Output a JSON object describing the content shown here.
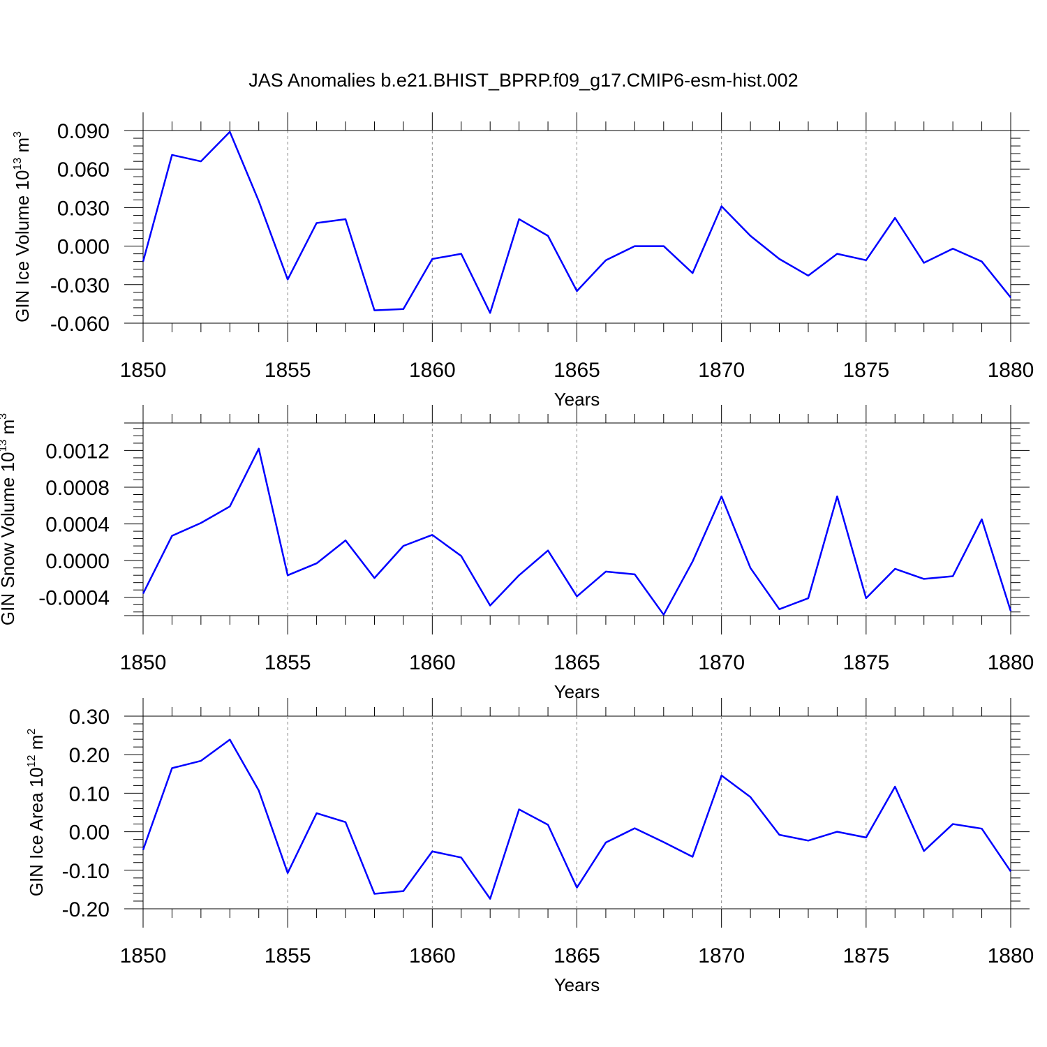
{
  "title": "JAS Anomalies b.e21.BHIST_BPRP.f09_g17.CMIP6-esm-hist.002",
  "colors": {
    "line": "#0000ff",
    "axis": "#000000",
    "grid": "#888888"
  },
  "chart_data": [
    {
      "type": "line",
      "ylabel": {
        "base": "GIN Ice Volume 10",
        "exp": "13",
        "unit": " m",
        "unitExp": "3"
      },
      "xlabel": "Years",
      "xlim": [
        1850,
        1880
      ],
      "ylim": [
        -0.06,
        0.09
      ],
      "xticks": [
        1850,
        1855,
        1860,
        1865,
        1870,
        1875,
        1880
      ],
      "yticks": [
        -0.06,
        -0.03,
        0.0,
        0.03,
        0.06,
        0.09
      ],
      "yticklabels": [
        "-0.060",
        "-0.030",
        "0.000",
        "0.030",
        "0.060",
        "0.090"
      ],
      "x": [
        1850,
        1851,
        1852,
        1853,
        1854,
        1855,
        1856,
        1857,
        1858,
        1859,
        1860,
        1861,
        1862,
        1863,
        1864,
        1865,
        1866,
        1867,
        1868,
        1869,
        1870,
        1871,
        1872,
        1873,
        1874,
        1875,
        1876,
        1877,
        1878,
        1879,
        1880
      ],
      "values": [
        -0.012,
        0.071,
        0.066,
        0.089,
        0.035,
        -0.026,
        0.018,
        0.021,
        -0.05,
        -0.049,
        -0.01,
        -0.006,
        -0.052,
        0.021,
        0.008,
        -0.035,
        -0.011,
        0.0,
        0.0,
        -0.021,
        0.031,
        0.008,
        -0.01,
        -0.023,
        -0.006,
        -0.011,
        0.022,
        -0.013,
        -0.002,
        -0.012,
        -0.04
      ]
    },
    {
      "type": "line",
      "ylabel": {
        "base": "GIN Snow Volume 10",
        "exp": "13",
        "unit": " m",
        "unitExp": "3"
      },
      "xlabel": "Years",
      "xlim": [
        1850,
        1880
      ],
      "ylim": [
        -0.0006,
        0.0015
      ],
      "xticks": [
        1850,
        1855,
        1860,
        1865,
        1870,
        1875,
        1880
      ],
      "yticks": [
        -0.0004,
        0.0,
        0.0004,
        0.0008,
        0.0012
      ],
      "yticklabels": [
        "-0.0004",
        "0.0000",
        "0.0004",
        "0.0008",
        "0.0012"
      ],
      "x": [
        1850,
        1851,
        1852,
        1853,
        1854,
        1855,
        1856,
        1857,
        1858,
        1859,
        1860,
        1861,
        1862,
        1863,
        1864,
        1865,
        1866,
        1867,
        1868,
        1869,
        1870,
        1871,
        1872,
        1873,
        1874,
        1875,
        1876,
        1877,
        1878,
        1879,
        1880
      ],
      "values": [
        -0.00036,
        0.00027,
        0.00041,
        0.00059,
        0.00122,
        -0.00016,
        -3e-05,
        0.00022,
        -0.00019,
        0.00016,
        0.00028,
        5e-05,
        -0.00049,
        -0.00016,
        0.00011,
        -0.00039,
        -0.00012,
        -0.00015,
        -0.00059,
        -1e-05,
        0.0007,
        -8e-05,
        -0.00053,
        -0.00041,
        0.0007,
        -0.00041,
        -9e-05,
        -0.0002,
        -0.00017,
        0.00045,
        -0.00055
      ]
    },
    {
      "type": "line",
      "ylabel": {
        "base": "GIN Ice Area 10",
        "exp": "12",
        "unit": " m",
        "unitExp": "2"
      },
      "xlabel": "Years",
      "xlim": [
        1850,
        1880
      ],
      "ylim": [
        -0.2,
        0.3
      ],
      "xticks": [
        1850,
        1855,
        1860,
        1865,
        1870,
        1875,
        1880
      ],
      "yticks": [
        -0.2,
        -0.1,
        0.0,
        0.1,
        0.2,
        0.3
      ],
      "yticklabels": [
        "-0.20",
        "-0.10",
        "0.00",
        "0.10",
        "0.20",
        "0.30"
      ],
      "x": [
        1850,
        1851,
        1852,
        1853,
        1854,
        1855,
        1856,
        1857,
        1858,
        1859,
        1860,
        1861,
        1862,
        1863,
        1864,
        1865,
        1866,
        1867,
        1868,
        1869,
        1870,
        1871,
        1872,
        1873,
        1874,
        1875,
        1876,
        1877,
        1878,
        1879,
        1880
      ],
      "values": [
        -0.047,
        0.165,
        0.184,
        0.239,
        0.107,
        -0.107,
        0.048,
        0.025,
        -0.161,
        -0.154,
        -0.051,
        -0.067,
        -0.174,
        0.058,
        0.018,
        -0.145,
        -0.028,
        0.009,
        -0.027,
        -0.065,
        0.146,
        0.09,
        -0.008,
        -0.023,
        0.0,
        -0.015,
        0.117,
        -0.05,
        0.02,
        0.008,
        -0.103
      ]
    }
  ]
}
